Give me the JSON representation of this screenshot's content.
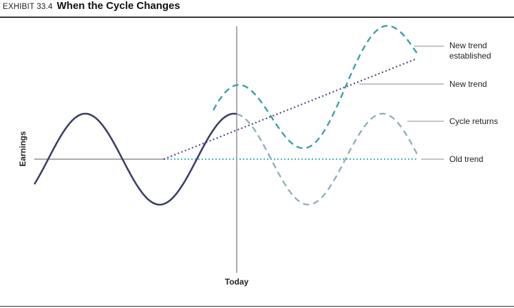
{
  "header": {
    "exhibit": "EXHIBIT 33.4",
    "title": "When the Cycle Changes"
  },
  "chart_data": {
    "type": "line",
    "title": "When the Cycle Changes",
    "xlabel": "Today",
    "ylabel": "Earnings",
    "grid": false,
    "x_axis": "none",
    "y_axis": "none",
    "series": [
      {
        "name": "Cycle",
        "style": "solid",
        "color": "#3a3f6a"
      },
      {
        "name": "New trend established",
        "style": "dashed",
        "color": "#3aa0a6"
      },
      {
        "name": "New trend",
        "style": "dotted",
        "color": "#4a4a7a"
      },
      {
        "name": "Cycle returns",
        "style": "dashed",
        "color": "#8fb0bb"
      },
      {
        "name": "Old trend",
        "style": "dotted",
        "color": "#4cb5c3"
      }
    ],
    "annotations": [
      "New trend established",
      "New trend",
      "Cycle returns",
      "Old trend"
    ]
  },
  "colors": {
    "cycle": "#3a3f6a",
    "new_trend_established": "#3aa0a6",
    "new_trend": "#4a4a7a",
    "cycle_returns": "#8fb0bb",
    "old_trend": "#4cb5c3",
    "axis": "#555555",
    "leader": "#888888"
  },
  "labels": {
    "new_trend_established_line1": "New trend",
    "new_trend_established_line2": "established",
    "new_trend": "New trend",
    "cycle_returns": "Cycle returns",
    "old_trend": "Old trend",
    "today": "Today",
    "earnings": "Earnings"
  }
}
